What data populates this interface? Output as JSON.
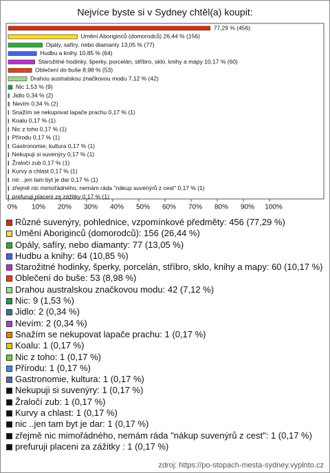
{
  "chart_data": {
    "type": "bar",
    "orientation": "horizontal",
    "title": "Nejvíce byste si v Sydney chtěl(a) koupit:",
    "categories": [
      "Různé suvenýry, pohlednice, vzpomínkové předměty: 456 (77,29 %)",
      "Umění Aboriginců (domorodců): 156 (26,44 %)",
      "Opály, safíry, nebo diamanty: 77 (13,05 %)",
      "Hudbu a knihy: 64 (10,85 %)",
      "Starožitné hodinky, šperky, porcelán, stříbro, sklo, knihy a mapy: 60 (10,17 %)",
      "Oblečení do buše: 53 (8,98 %)",
      "Drahou australskou značkovou modu: 42 (7,12 %)",
      "Nic: 9 (1,53 %)",
      "Jidlo: 2 (0,34 %)",
      "Nevím: 2 (0,34 %)",
      "Snažím se nekupovat lapače prachu: 1 (0,17 %)",
      "Koalu: 1 (0,17 %)",
      "Nic z toho: 1 (0,17 %)",
      "Přírodu: 1 (0,17 %)",
      "Gastronomie, kultura: 1 (0,17 %)",
      "Nekupuji si suvenýry: 1 (0,17 %)",
      "Žraločí zub: 1 (0,17 %)",
      "Kurvy a chlast: 1 (0,17 %)",
      "nic ..jen tam byt je dar: 1 (0,17 %)",
      "zřejmě nic mimořádného, nemám ráda \"nákup suvenýrů z cest\": 1 (0,17 %)",
      "prefuruji placeni za zážitky : 1 (0,17 %)"
    ],
    "values": [
      77.29,
      26.44,
      13.05,
      10.85,
      10.17,
      8.98,
      7.12,
      1.53,
      0.34,
      0.34,
      0.17,
      0.17,
      0.17,
      0.17,
      0.17,
      0.17,
      0.17,
      0.17,
      0.17,
      0.17,
      0.17
    ],
    "value_labels": [
      "77,29 % (456)",
      "Umění Aboriginců (domorodců) 26,44 % (156)",
      "Opály, safíry, nebo diamanty 13,05 % (77)",
      "Hudbu a knihy 10,85 % (64)",
      "Starožitné hodinky, šperky, porcelán, stříbro, sklo, knihy a mapy 10,17 % (60)",
      "Oblečení do buše 8,98 % (53)",
      "Drahou australskou značkovou modu 7,12 % (42)",
      "Nic 1,53 % (9)",
      "Jidlo 0,34 % (2)",
      "Nevím 0,34 % (2)",
      "Snažím se nekupovat lapače prachu 0,17 % (1)",
      "Koalu 0,17 % (1)",
      "Nic z toho 0,17 % (1)",
      "Přírodu 0,17 % (1)",
      "Gastronomie, kultura 0,17 % (1)",
      "Nekupuji si suvenýry 0,17 % (1)",
      "Žraločí zub 0,17 % (1)",
      "Kurvy a chlast 0,17 % (1)",
      "nic ..jen tam byt je dar 0,17 % (1)",
      "zřejmě nic mimořádného, nemám ráda \"nákup suvenýrů z cest\" 0,17 % (1)",
      "prefuruji placeni za zážitky 0,17 % (1)"
    ],
    "colors": [
      "#cc3311",
      "#ffdd22",
      "#33aa44",
      "#4466dd",
      "#bb33cc",
      "#dd4411",
      "#99dd88",
      "#229955",
      "#337788",
      "#aa44cc",
      "#ee7722",
      "#ddcc00",
      "#77cc33",
      "#4488ee",
      "#5566bb",
      "#111111",
      "#111111",
      "#111111",
      "#111111",
      "#111111",
      "#111111"
    ],
    "xlim": [
      0,
      100
    ],
    "xticks": [
      {
        "value": 0,
        "label": "0%"
      },
      {
        "value": 10,
        "label": "10%"
      },
      {
        "value": 20,
        "label": "20%"
      },
      {
        "value": 30,
        "label": "30%"
      },
      {
        "value": 40,
        "label": "40%"
      },
      {
        "value": 50,
        "label": "50%"
      },
      {
        "value": 60,
        "label": "60%"
      },
      {
        "value": 70,
        "label": "70%"
      },
      {
        "value": 80,
        "label": "80%"
      },
      {
        "value": 90,
        "label": "90%"
      },
      {
        "value": 100,
        "label": "100%"
      }
    ],
    "grid": false
  },
  "source": "zdroj: https://po-stopach-mesta-sydney.vyplnto.cz"
}
